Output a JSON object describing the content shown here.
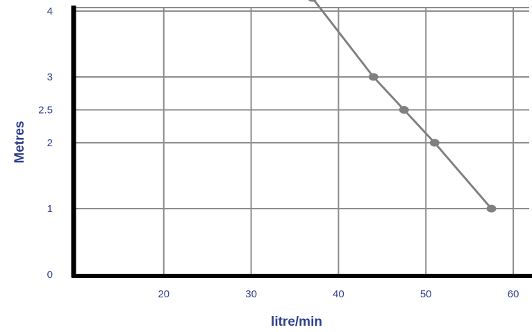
{
  "chart_data": {
    "type": "line",
    "title": "",
    "xlabel": "litre/min",
    "ylabel": "Metres",
    "x_ticks": [
      20,
      30,
      40,
      50,
      60
    ],
    "y_ticks": [
      0,
      1,
      2,
      2.5,
      3,
      4
    ],
    "x_tick_labels": [
      "20",
      "30",
      "40",
      "50",
      "60"
    ],
    "y_tick_labels": [
      "0",
      "1",
      "2",
      "2.5",
      "3",
      "4"
    ],
    "xlim": [
      10,
      60
    ],
    "ylim": [
      0,
      4.2
    ],
    "grid": true,
    "series": [
      {
        "x": [
          37,
          44,
          47.5,
          51,
          57.5
        ],
        "y": [
          4.2,
          3,
          2.5,
          2,
          1
        ]
      }
    ],
    "colors": {
      "series": "#808080",
      "grid": "#8c8c8c",
      "axis": "#000000",
      "text": "#2f3e8c"
    }
  }
}
